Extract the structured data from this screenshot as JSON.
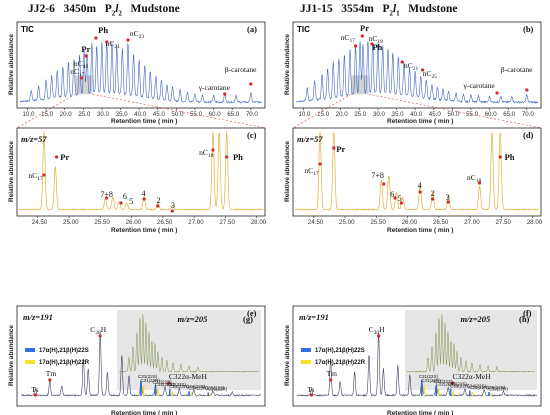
{
  "headers": {
    "left": {
      "well": "JJ2-6",
      "depth": "3450m",
      "formation": "P",
      "formation_sub": "2",
      "formation_var": "l",
      "formation_var_sub": "2",
      "lithology": "Mudstone"
    },
    "right": {
      "well": "JJ1-15",
      "depth": "3554m",
      "formation": "P",
      "formation_sub": "2",
      "formation_var": "l",
      "formation_var_sub": "1",
      "lithology": "Mudstone"
    }
  },
  "axes": {
    "relative_abundance": "Relative abundance",
    "retention_time": "Retention time ( min )",
    "tic_ticks": [
      "10.0",
      "15.0",
      "20.0",
      "25.0",
      "30.0",
      "35.0",
      "40.0",
      "45.0",
      "50.0",
      "55.0",
      "60.0",
      "65.0",
      "70.0"
    ],
    "m57_ticks": [
      "24.50",
      "25.00",
      "25.50",
      "26.00",
      "26.50",
      "27.00",
      "27.50",
      "28.00"
    ]
  },
  "colors": {
    "tic": "#2f5fbf",
    "m57": "#e0b23a",
    "m191": "#444466",
    "s22": "#2f6fe0",
    "r22": "#f2e22a",
    "marker": "#d42a2a",
    "inset_bg": "#e6e6e6",
    "inset_trace": "#8a9a5a"
  },
  "chart_data": [
    {
      "panel": "(a)",
      "type": "line",
      "trace": "TIC",
      "labels": {
        "c17": "nC",
        "c17_sub": "17",
        "pr": "Pr",
        "ph": "Ph",
        "c18": "nC",
        "c18_sub": "18",
        "c21": "nC",
        "c21_sub": "21",
        "c23": "nC",
        "c23_sub": "23",
        "gamma": "γ-carotane",
        "beta": "β-carotane"
      },
      "xlim": [
        8,
        73
      ],
      "peaks": [
        [
          11,
          0.18
        ],
        [
          13,
          0.25
        ],
        [
          15,
          0.33
        ],
        [
          16.5,
          0.4
        ],
        [
          18,
          0.47
        ],
        [
          19.5,
          0.52
        ],
        [
          21,
          0.58
        ],
        [
          22.5,
          0.62
        ],
        [
          24,
          0.68
        ],
        [
          25.2,
          0.74
        ],
        [
          26,
          0.7
        ],
        [
          27.3,
          0.85
        ],
        [
          28.6,
          0.8
        ],
        [
          30,
          0.86
        ],
        [
          31.3,
          0.92
        ],
        [
          32.7,
          0.88
        ],
        [
          34,
          0.82
        ],
        [
          35.5,
          0.78
        ],
        [
          37,
          0.9
        ],
        [
          38.5,
          0.72
        ],
        [
          40,
          0.62
        ],
        [
          41.5,
          0.55
        ],
        [
          43,
          0.46
        ],
        [
          44.5,
          0.4
        ],
        [
          46,
          0.34
        ],
        [
          47.5,
          0.28
        ],
        [
          49,
          0.24
        ],
        [
          51,
          0.2
        ],
        [
          53,
          0.17
        ],
        [
          55,
          0.14
        ],
        [
          57,
          0.12
        ],
        [
          60,
          0.11
        ],
        [
          63,
          0.14
        ],
        [
          66,
          0.12
        ],
        [
          70,
          0.16
        ]
      ]
    },
    {
      "panel": "(b)",
      "type": "line",
      "trace": "TIC",
      "labels": {
        "c17": "nC",
        "c17_sub": "17",
        "pr": "Pr",
        "c18": "nC",
        "c18_sub": "18",
        "ph": "Ph",
        "c21": "nC",
        "c21_sub": "21",
        "c25": "nC",
        "c25_sub": "25",
        "gamma": "γ-carotane",
        "beta": "β-carotane"
      },
      "xlim": [
        8,
        73
      ],
      "peaks": [
        [
          11,
          0.22
        ],
        [
          13,
          0.32
        ],
        [
          15,
          0.42
        ],
        [
          16.5,
          0.52
        ],
        [
          18,
          0.6
        ],
        [
          19.5,
          0.66
        ],
        [
          21,
          0.72
        ],
        [
          22.5,
          0.78
        ],
        [
          24,
          0.84
        ],
        [
          25.2,
          0.9
        ],
        [
          26,
          0.84
        ],
        [
          27.3,
          0.95
        ],
        [
          28.6,
          0.88
        ],
        [
          30,
          0.86
        ],
        [
          31.3,
          0.82
        ],
        [
          32.7,
          0.76
        ],
        [
          34,
          0.7
        ],
        [
          35.5,
          0.62
        ],
        [
          37,
          0.56
        ],
        [
          38.5,
          0.48
        ],
        [
          40,
          0.42
        ],
        [
          41.5,
          0.36
        ],
        [
          43,
          0.3
        ],
        [
          44.5,
          0.26
        ],
        [
          46,
          0.22
        ],
        [
          47.5,
          0.19
        ],
        [
          49,
          0.16
        ],
        [
          51,
          0.14
        ],
        [
          53,
          0.12
        ],
        [
          55,
          0.11
        ],
        [
          57,
          0.1
        ],
        [
          60,
          0.09
        ],
        [
          63,
          0.11
        ],
        [
          66,
          0.1
        ],
        [
          70,
          0.13
        ]
      ]
    },
    {
      "panel": "(c)",
      "type": "line",
      "trace": "m/z=57",
      "mz_label": "m/z=57",
      "labels": {
        "c17": "nC",
        "c17_sub": "17",
        "pr": "Pr",
        "c18": "nC",
        "c18_sub": "18",
        "ph": "Ph",
        "p78": "7+8",
        "p6": "6",
        "p5": "5",
        "p4": "4",
        "p2": "2",
        "p3": "3"
      },
      "xlim": [
        24.2,
        28.1
      ],
      "peaks": [
        [
          24.6,
          1.0
        ],
        [
          24.78,
          0.55
        ],
        [
          25.58,
          0.14
        ],
        [
          25.7,
          0.16
        ],
        [
          25.8,
          0.1
        ],
        [
          25.92,
          0.08
        ],
        [
          26.2,
          0.16
        ],
        [
          26.42,
          0.09
        ],
        [
          26.65,
          0.05
        ],
        [
          27.3,
          1.0
        ],
        [
          27.4,
          1.0
        ],
        [
          27.52,
          1.0
        ]
      ]
    },
    {
      "panel": "(d)",
      "type": "line",
      "trace": "m/z=57",
      "mz_label": "m/z=57",
      "labels": {
        "c17": "nC",
        "c17_sub": "17",
        "pr": "Pr",
        "c18": "nC",
        "c18_sub": "18",
        "ph": "Ph",
        "p78": "7+8",
        "p6": "6",
        "p5": "5",
        "p4": "4",
        "p2": "2",
        "p3": "3"
      },
      "xlim": [
        24.2,
        28.1
      ],
      "peaks": [
        [
          24.6,
          1.0
        ],
        [
          24.82,
          1.0
        ],
        [
          25.58,
          0.38
        ],
        [
          25.7,
          0.44
        ],
        [
          25.82,
          0.22
        ],
        [
          25.92,
          0.16
        ],
        [
          26.2,
          0.32
        ],
        [
          26.4,
          0.22
        ],
        [
          26.65,
          0.18
        ],
        [
          27.15,
          0.3
        ],
        [
          27.35,
          1.0
        ],
        [
          27.48,
          1.0
        ]
      ]
    },
    {
      "panel": "(e)",
      "type": "line",
      "trace": "m/z=191",
      "mz_label": "m/z=191",
      "labels": {
        "c30h": "C",
        "c30h_sub": "30",
        "c30h_suffix": "H",
        "tm": "Tm",
        "ts": "Ts"
      },
      "legend": [
        {
          "name": "17α(H),21β(H)22S",
          "color_key": "s22"
        },
        {
          "name": "17α(H),21β(H)22R",
          "color_key": "r22"
        }
      ],
      "homohopanes": [
        "C31(22S)",
        "C31(22R)",
        "C32(22S)",
        "C32(22R)",
        "C33(22S)",
        "C33(22R)",
        "C34(22S)",
        "C34(22R)",
        "C35(22S)",
        "C35(22R)"
      ]
    },
    {
      "panel": "(g)",
      "type": "line",
      "trace": "m/z=205",
      "mz_label": "m/z=205",
      "peak_label": "C322α-MeH"
    },
    {
      "panel": "(f)",
      "type": "line",
      "trace": "m/z=191",
      "mz_label": "m/z=191",
      "labels": {
        "c30h": "C",
        "c30h_sub": "30",
        "c30h_suffix": "H",
        "tm": "Tm",
        "ts": "Ts"
      },
      "legend": [
        {
          "name": "17α(H),21β(H)22S",
          "color_key": "s22"
        },
        {
          "name": "17α(H),21β(H)22R",
          "color_key": "r22"
        }
      ],
      "homohopanes": [
        "C31(22S)",
        "C31(22R)",
        "C32(22S)",
        "C32(22R)",
        "C33(22S)",
        "C33(22R)",
        "C34(22S)",
        "C34(22R)",
        "C35(22S)",
        "C35(22R)"
      ]
    },
    {
      "panel": "(h)",
      "type": "line",
      "trace": "m/z=205",
      "mz_label": "m/z=205",
      "peak_label": "C322α-MeH"
    }
  ]
}
